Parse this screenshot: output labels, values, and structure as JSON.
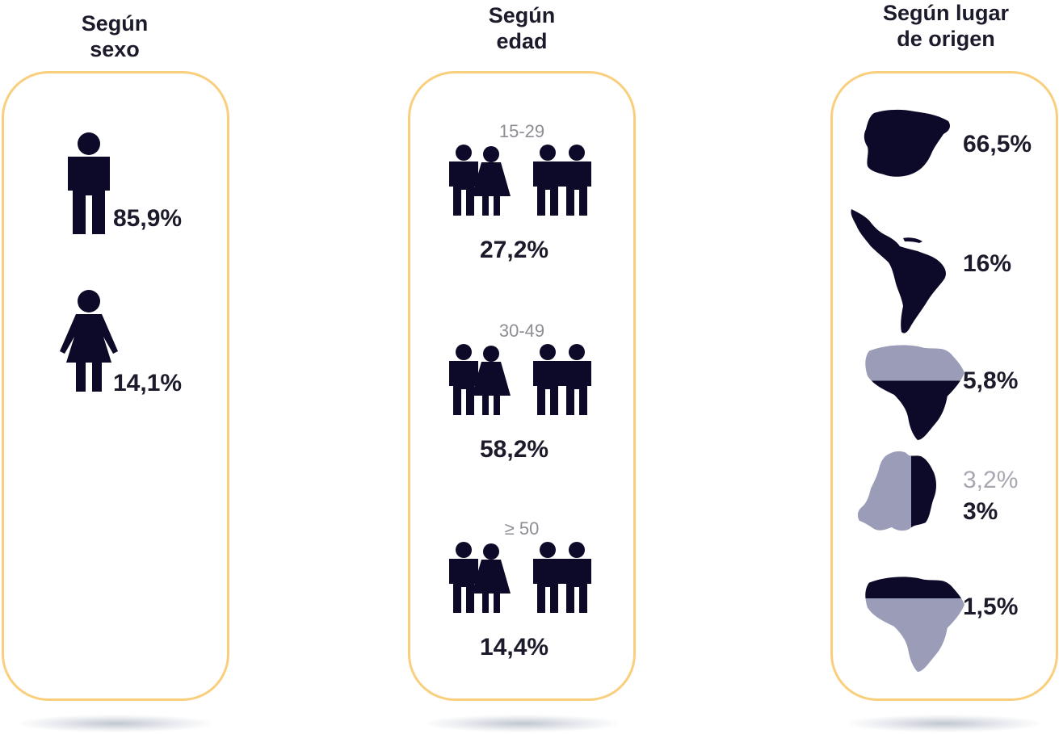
{
  "columns": {
    "sexo": {
      "title": "Según\nsexo",
      "items": [
        {
          "icon": "man-icon",
          "value": "85,9%"
        },
        {
          "icon": "woman-icon",
          "value": "14,1%"
        }
      ]
    },
    "edad": {
      "title": "Según\nedad",
      "items": [
        {
          "range": "15-29",
          "value": "27,2%"
        },
        {
          "range": "30-49",
          "value": "58,2%"
        },
        {
          "range": "≥ 50",
          "value": "14,4%"
        }
      ]
    },
    "origen": {
      "title": "Según lugar\nde origen",
      "items": [
        {
          "icon": "spain-map-icon",
          "value": "66,5%"
        },
        {
          "icon": "latin-america-map-icon",
          "value": "16%"
        },
        {
          "icon": "north-africa-map-icon",
          "value": "5,8%"
        },
        {
          "icon": "eastern-europe-map-icon",
          "value": "3%",
          "secondary_value": "3,2%"
        },
        {
          "icon": "sub-saharan-africa-map-icon",
          "value": "1,5%"
        }
      ]
    }
  },
  "colors": {
    "icon_dark": "#0d0a29",
    "icon_light": "#9b9db8",
    "card_border": "#f9cf7e",
    "text": "#1c1b2b",
    "muted_text": "#8d8d95"
  }
}
